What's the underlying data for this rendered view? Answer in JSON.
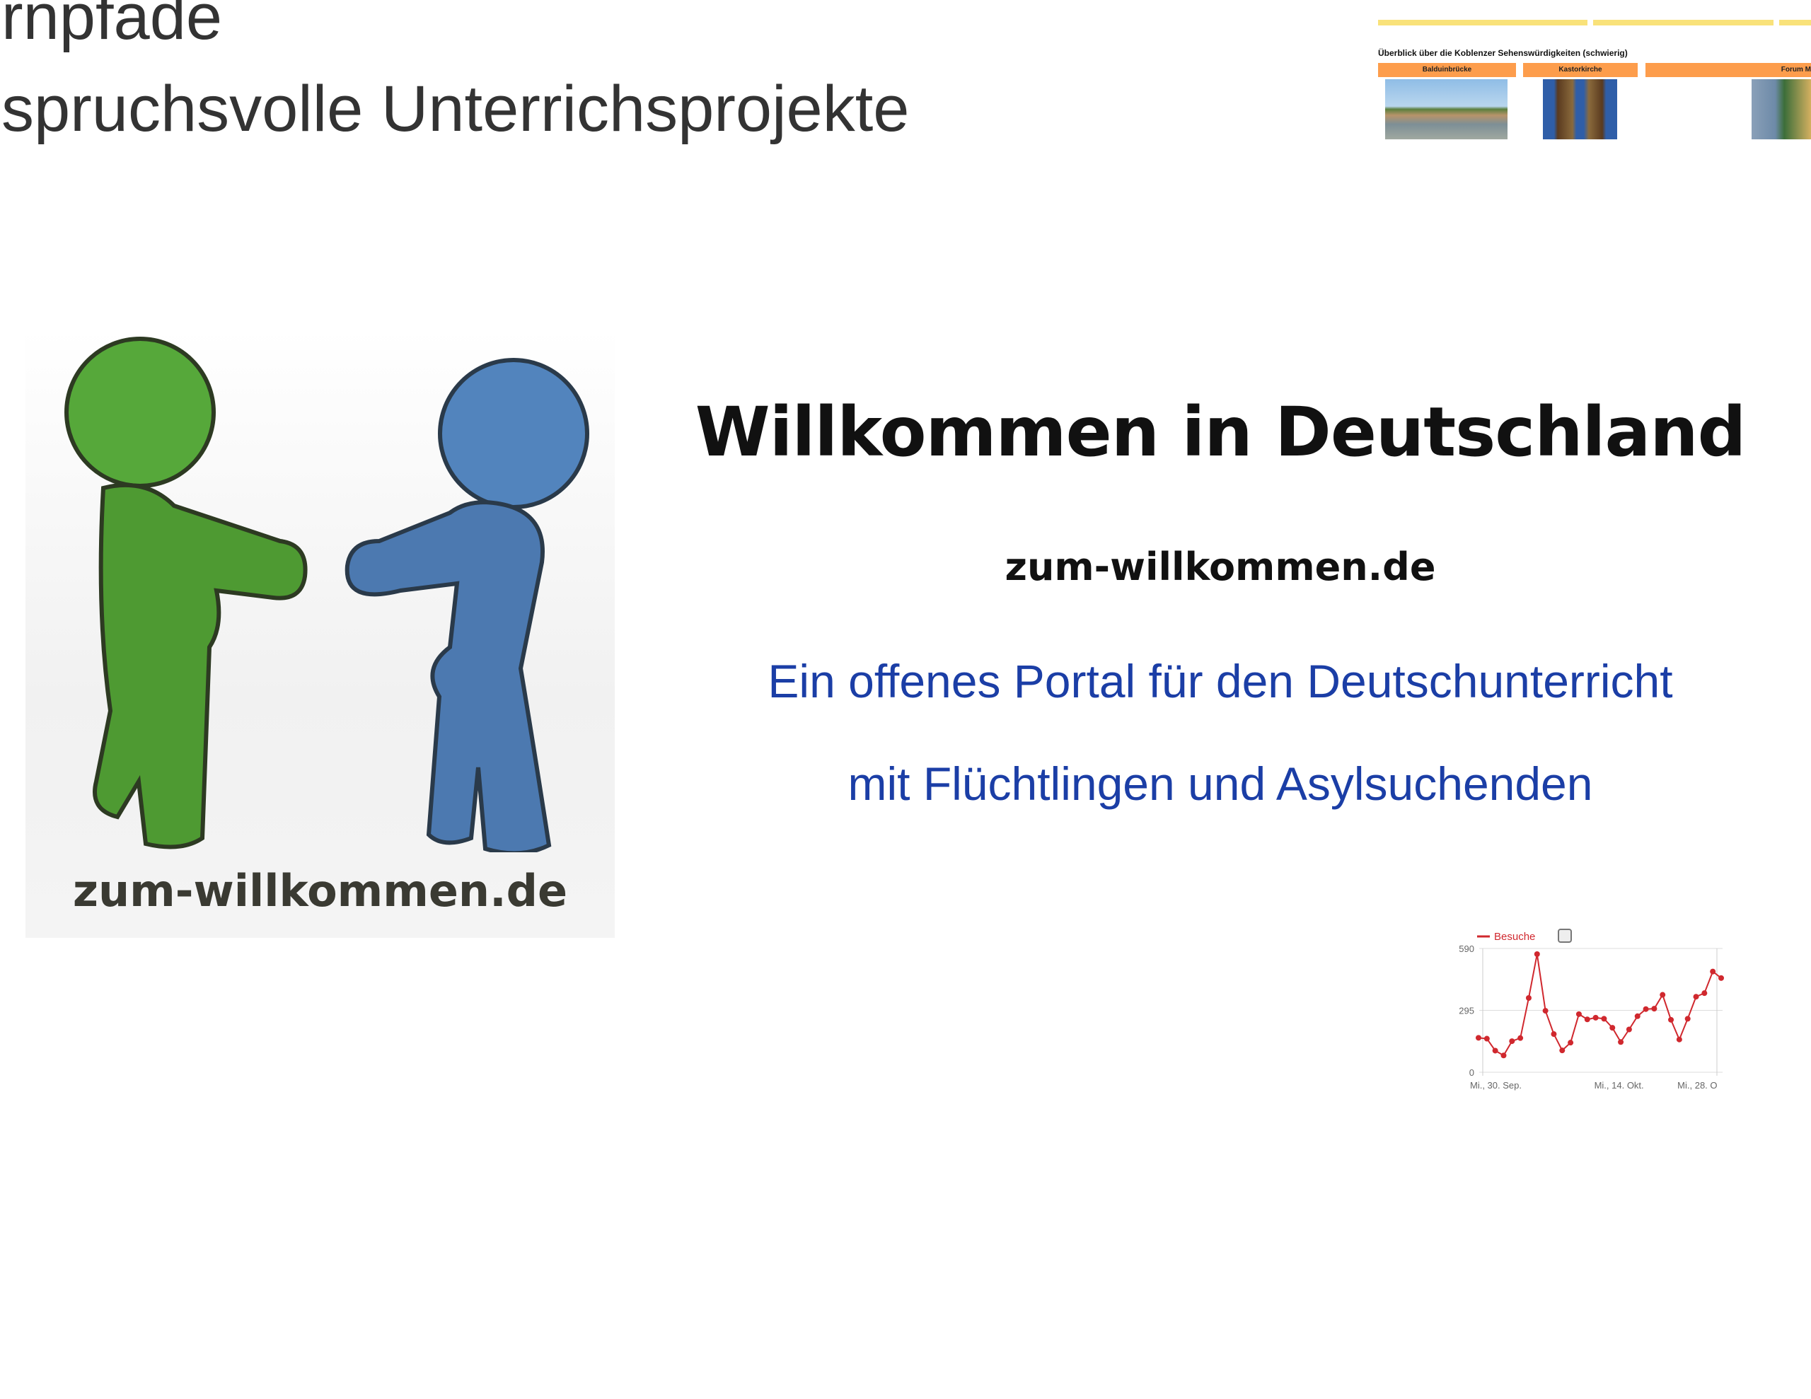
{
  "header": {
    "line1": "rnpfade",
    "line2": "spruchsvolle Unterrichsprojekte"
  },
  "logo": {
    "text": "zum-willkommen.de",
    "figure_colors": {
      "left": "#4e9a32",
      "right": "#4c79b0"
    }
  },
  "main": {
    "title": "Willkommen in Deutschland",
    "site": "zum-willkommen.de",
    "line1": "Ein offenes Portal für den Deutschunterricht",
    "line2": "mit Flüchtlingen und Asylsuchenden",
    "accent": "#1b3ea6"
  },
  "thumbnail": {
    "caption": "Überblick über die Koblenzer Sehenswürdigkeiten (schwierig)",
    "tabs": [
      "Balduinbrücke",
      "Kastorkirche",
      "Forum M"
    ]
  },
  "chart_data": {
    "type": "line",
    "legend": "Besuche",
    "legend_placement": "top-left",
    "color": "#d0282e",
    "ylim": [
      0,
      590
    ],
    "yticks": [
      0,
      295,
      590
    ],
    "xtick_labels": [
      "Mi., 30. Sep.",
      "Mi., 14. Okt.",
      "Mi., 28. O"
    ],
    "grid": true,
    "values": [
      164,
      160,
      103,
      80,
      148,
      163,
      354,
      563,
      293,
      182,
      104,
      141,
      277,
      252,
      260,
      255,
      212,
      144,
      204,
      267,
      301,
      303,
      369,
      250,
      156,
      255,
      360,
      377,
      480,
      449
    ]
  }
}
